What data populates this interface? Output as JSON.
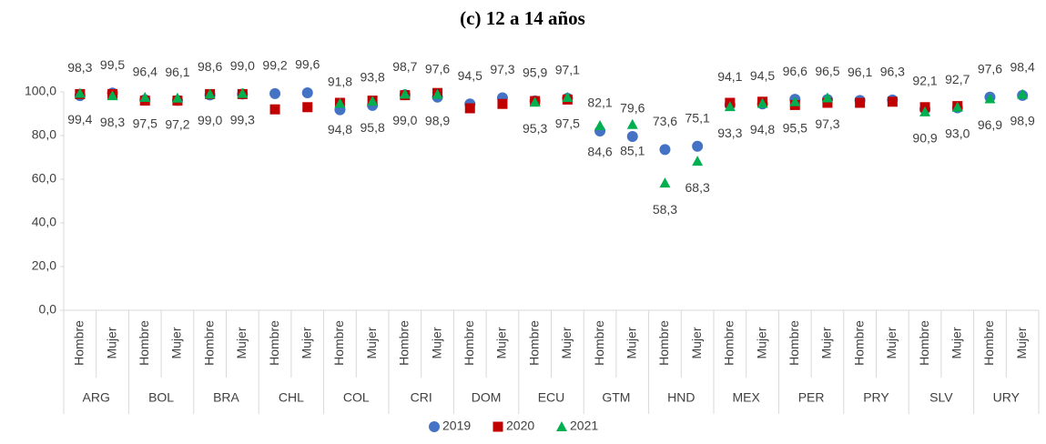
{
  "chart_data": {
    "type": "dot",
    "title": "(c)  12 a 14 años",
    "groups": [
      "ARG",
      "BOL",
      "BRA",
      "CHL",
      "COL",
      "CRI",
      "DOM",
      "ECU",
      "GTM",
      "HND",
      "MEX",
      "PER",
      "PRY",
      "SLV",
      "URY"
    ],
    "categories": [
      "Hombre",
      "Mujer",
      "Hombre",
      "Mujer",
      "Hombre",
      "Mujer",
      "Hombre",
      "Mujer",
      "Hombre",
      "Mujer",
      "Hombre",
      "Mujer",
      "Hombre",
      "Mujer",
      "Hombre",
      "Mujer",
      "Hombre",
      "Mujer",
      "Hombre",
      "Mujer",
      "Hombre",
      "Mujer",
      "Hombre",
      "Mujer",
      "Hombre",
      "Mujer",
      "Hombre",
      "Mujer",
      "Hombre",
      "Mujer"
    ],
    "series": [
      {
        "name": "2019",
        "color": "#4472c4",
        "marker": "circle",
        "label_position": "above",
        "values": [
          98.3,
          99.5,
          96.4,
          96.1,
          98.6,
          99.0,
          99.2,
          99.6,
          91.8,
          93.8,
          98.7,
          97.6,
          94.5,
          97.3,
          95.9,
          97.1,
          82.1,
          79.6,
          73.6,
          75.1,
          94.1,
          94.5,
          96.6,
          96.5,
          96.1,
          96.3,
          92.1,
          92.7,
          97.6,
          98.4
        ],
        "value_labels": [
          "98,3",
          "99,5",
          "96,4",
          "96,1",
          "98,6",
          "99,0",
          "99,2",
          "99,6",
          "91,8",
          "93,8",
          "98,7",
          "97,6",
          "94,5",
          "97,3",
          "95,9",
          "97,1",
          "82,1",
          "79,6",
          "73,6",
          "75,1",
          "94,1",
          "94,5",
          "96,6",
          "96,5",
          "96,1",
          "96,3",
          "92,1",
          "92,7",
          "97,6",
          "98,4"
        ]
      },
      {
        "name": "2020",
        "color": "#c00000",
        "marker": "square",
        "values": [
          99.0,
          99.0,
          96.0,
          96.0,
          99.0,
          99.0,
          92.0,
          93.0,
          95.0,
          96.0,
          98.5,
          99.5,
          92.5,
          94.5,
          95.8,
          96.5,
          null,
          null,
          null,
          null,
          95.0,
          95.5,
          94.0,
          95.0,
          95.0,
          95.5,
          93.0,
          93.5,
          null,
          null
        ]
      },
      {
        "name": "2021",
        "color": "#00b050",
        "marker": "triangle",
        "label_position": "below",
        "values": [
          99.4,
          98.3,
          97.5,
          97.2,
          99.0,
          99.3,
          null,
          null,
          94.8,
          95.8,
          99.0,
          98.9,
          null,
          null,
          95.3,
          97.5,
          84.6,
          85.1,
          58.3,
          68.3,
          93.3,
          94.8,
          95.5,
          97.3,
          null,
          null,
          90.9,
          93.0,
          96.9,
          98.9
        ],
        "value_labels": [
          "99,4",
          "98,3",
          "97,5",
          "97,2",
          "99,0",
          "99,3",
          null,
          null,
          "94,8",
          "95,8",
          "99,0",
          "98,9",
          null,
          null,
          "95,3",
          "97,5",
          "84,6",
          "85,1",
          "58,3",
          "68,3",
          "93,3",
          "94,8",
          "95,5",
          "97,3",
          null,
          null,
          "90,9",
          "93,0",
          "96,9",
          "98,9"
        ]
      }
    ],
    "ylim": [
      0,
      100
    ],
    "yticks": [
      {
        "value": 0,
        "label": "0,0"
      },
      {
        "value": 20,
        "label": "20,0"
      },
      {
        "value": 40,
        "label": "40,0"
      },
      {
        "value": 60,
        "label": "60,0"
      },
      {
        "value": 80,
        "label": "80,0"
      },
      {
        "value": 100,
        "label": "100,0"
      }
    ],
    "grid": false,
    "legend": "bottom"
  }
}
